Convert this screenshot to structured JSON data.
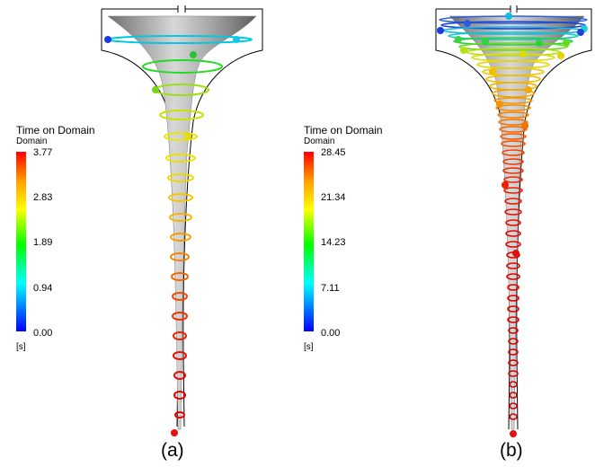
{
  "panels": [
    {
      "id": "a",
      "caption": "(a)",
      "legend": {
        "title": "Time on Domain",
        "subtitle": "Domain",
        "unit": "[s]",
        "ticks": [
          "3.77",
          "2.83",
          "1.89",
          "0.94",
          "0.00"
        ],
        "max": 3.77
      }
    },
    {
      "id": "b",
      "caption": "(b)",
      "legend": {
        "title": "Time on Domain",
        "subtitle": "Domain",
        "unit": "[s]",
        "ticks": [
          "28.45",
          "21.34",
          "14.23",
          "7.11",
          "0.00"
        ],
        "max": 28.45
      }
    }
  ],
  "colors": {
    "scale": [
      "#0000ff",
      "#00ffff",
      "#00ff00",
      "#ffff00",
      "#ffa500",
      "#ff0000"
    ],
    "vortex_core": "#9a9a9a",
    "outline": "#000000"
  }
}
